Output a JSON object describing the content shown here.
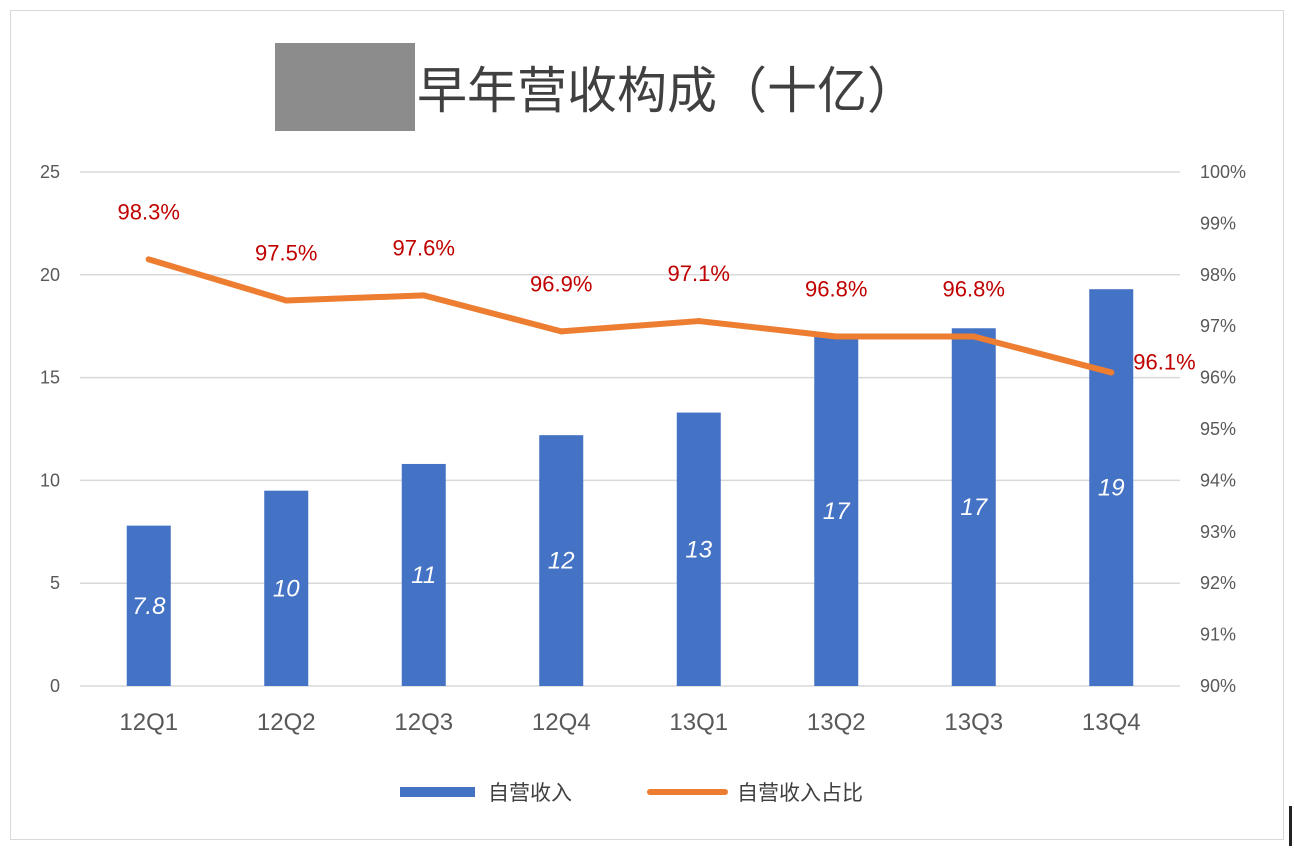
{
  "chart_data": {
    "type": "bar",
    "title": "早年营收构成（十亿）",
    "categories": [
      "12Q1",
      "12Q2",
      "12Q3",
      "12Q4",
      "13Q1",
      "13Q2",
      "13Q3",
      "13Q4"
    ],
    "series": [
      {
        "name": "自营收入",
        "type": "bar",
        "axis": "left",
        "values": [
          7.8,
          9.5,
          10.8,
          12.2,
          13.3,
          17.0,
          17.4,
          19.3
        ],
        "labels": [
          "7.8",
          "10",
          "11",
          "12",
          "13",
          "17",
          "17",
          "19"
        ],
        "color": "#4472c4"
      },
      {
        "name": "自营收入占比",
        "type": "line",
        "axis": "right",
        "values": [
          98.3,
          97.5,
          97.6,
          96.9,
          97.1,
          96.8,
          96.8,
          96.1
        ],
        "labels": [
          "98.3%",
          "97.5%",
          "97.6%",
          "96.9%",
          "97.1%",
          "96.8%",
          "96.8%",
          "96.1%"
        ],
        "color": "#ed7d31",
        "label_color": "#c00000"
      }
    ],
    "y_left": {
      "ylim": [
        0,
        25
      ],
      "ticks": [
        "0",
        "5",
        "10",
        "15",
        "20",
        "25"
      ]
    },
    "y_right": {
      "ylim": [
        90,
        100
      ],
      "ticks": [
        "90%",
        "91%",
        "92%",
        "93%",
        "94%",
        "95%",
        "96%",
        "97%",
        "98%",
        "99%",
        "100%"
      ]
    },
    "grid": true,
    "legend": "bottom"
  }
}
